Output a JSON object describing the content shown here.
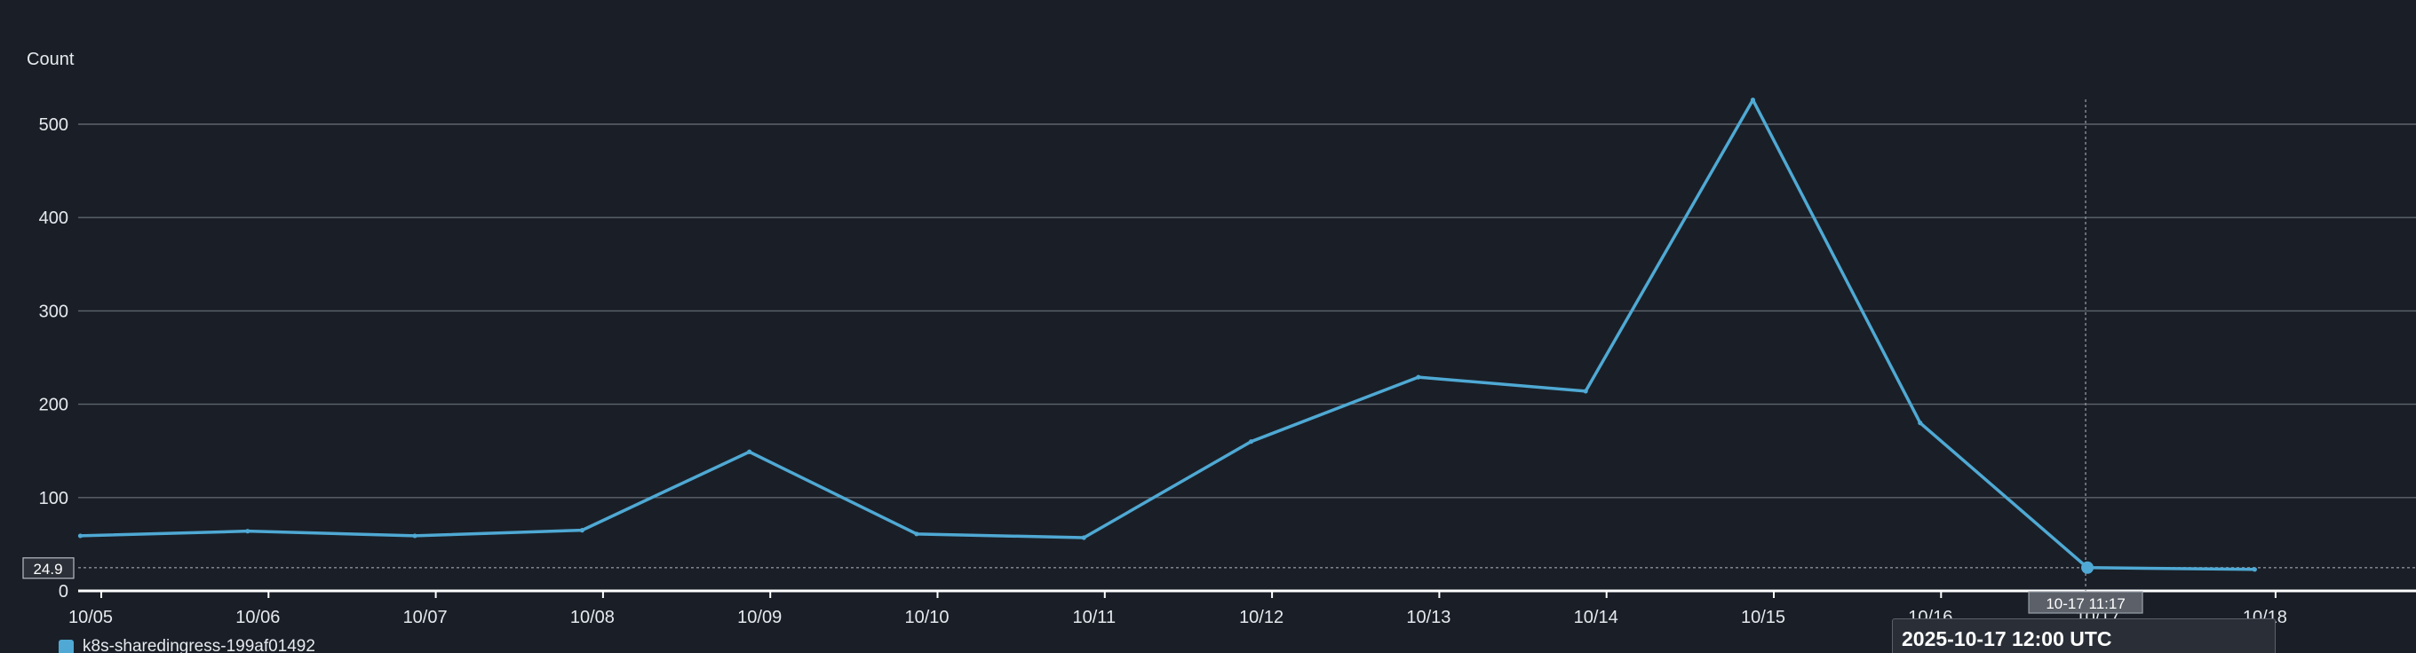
{
  "chart_data": {
    "type": "line",
    "ylabel": "Count",
    "xlabel": "",
    "title": "",
    "x_ticks": [
      "10/05",
      "10/06",
      "10/07",
      "10/08",
      "10/09",
      "10/10",
      "10/11",
      "10/12",
      "10/13",
      "10/14",
      "10/15",
      "10/16",
      "10/17",
      "10/18"
    ],
    "y_ticks": [
      0,
      100,
      200,
      300,
      400,
      500
    ],
    "ylim": [
      0,
      545
    ],
    "grid": true,
    "series": [
      {
        "name": "k8s-sharedingress-199af01492",
        "color": "#4fa9d4",
        "points": [
          {
            "x": "2025-10-04T21:00",
            "y": 59
          },
          {
            "x": "2025-10-05T21:00",
            "y": 64
          },
          {
            "x": "2025-10-06T21:00",
            "y": 59
          },
          {
            "x": "2025-10-07T21:00",
            "y": 65
          },
          {
            "x": "2025-10-08T21:00",
            "y": 149
          },
          {
            "x": "2025-10-09T21:00",
            "y": 61
          },
          {
            "x": "2025-10-10T21:00",
            "y": 57
          },
          {
            "x": "2025-10-11T21:00",
            "y": 160
          },
          {
            "x": "2025-10-12T21:00",
            "y": 229
          },
          {
            "x": "2025-10-13T21:00",
            "y": 214
          },
          {
            "x": "2025-10-14T21:00",
            "y": 526
          },
          {
            "x": "2025-10-15T21:00",
            "y": 180
          },
          {
            "x": "2025-10-16T21:00",
            "y": 24.9
          },
          {
            "x": "2025-10-17T21:00",
            "y": 23
          }
        ]
      }
    ],
    "crosshair": {
      "y_value_label": "24.9",
      "x_time_label": "10-17 11:17"
    },
    "tooltip": {
      "title": "2025-10-17 12:00 UTC"
    },
    "legend": {
      "placement": "bottom-left",
      "entries": [
        "k8s-sharedingress-199af01492"
      ]
    }
  }
}
